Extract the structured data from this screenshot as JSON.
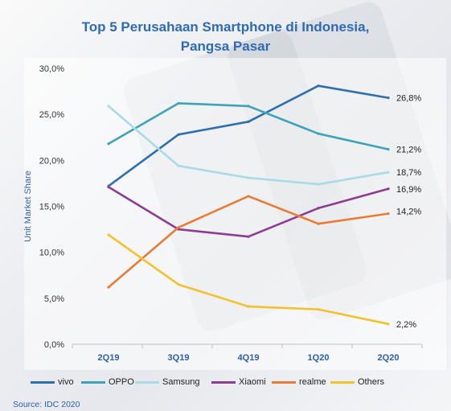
{
  "title_line1": "Top 5 Perusahaan Smartphone di Indonesia,",
  "title_line2": "Pangsa Pasar",
  "source": "Source: IDC 2020",
  "chart_data": {
    "type": "line",
    "title": "Top 5 Perusahaan Smartphone di Indonesia, Pangsa Pasar",
    "xlabel": "",
    "ylabel": "Unit Market Share",
    "categories": [
      "2Q19",
      "3Q19",
      "4Q19",
      "1Q20",
      "2Q20"
    ],
    "yticks": [
      "0,0%",
      "5,0%",
      "10,0%",
      "15,0%",
      "20,0%",
      "25,0%",
      "30,0%"
    ],
    "ylim": [
      0,
      30
    ],
    "grid": false,
    "legend_position": "bottom",
    "series": [
      {
        "name": "vivo",
        "color": "#2e6fad",
        "values": [
          17.2,
          22.8,
          24.2,
          28.1,
          26.8
        ],
        "end_label": "26,8%"
      },
      {
        "name": "OPPO",
        "color": "#3fa3b8",
        "values": [
          21.8,
          26.2,
          25.9,
          22.9,
          21.2
        ],
        "end_label": "21,2%"
      },
      {
        "name": "Samsung",
        "color": "#a9dbe6",
        "values": [
          25.9,
          19.4,
          18.1,
          17.4,
          18.7
        ],
        "end_label": "18,7%"
      },
      {
        "name": "Xiaomi",
        "color": "#8e3c91",
        "values": [
          17.1,
          12.5,
          11.7,
          14.8,
          16.9
        ],
        "end_label": "16,9%"
      },
      {
        "name": "realme",
        "color": "#e97b35",
        "values": [
          6.2,
          12.7,
          16.1,
          13.1,
          14.2
        ],
        "end_label": "14,2%"
      },
      {
        "name": "Others",
        "color": "#f2c12e",
        "values": [
          11.9,
          6.5,
          4.1,
          3.8,
          2.2
        ],
        "end_label": "2,2%"
      }
    ]
  }
}
